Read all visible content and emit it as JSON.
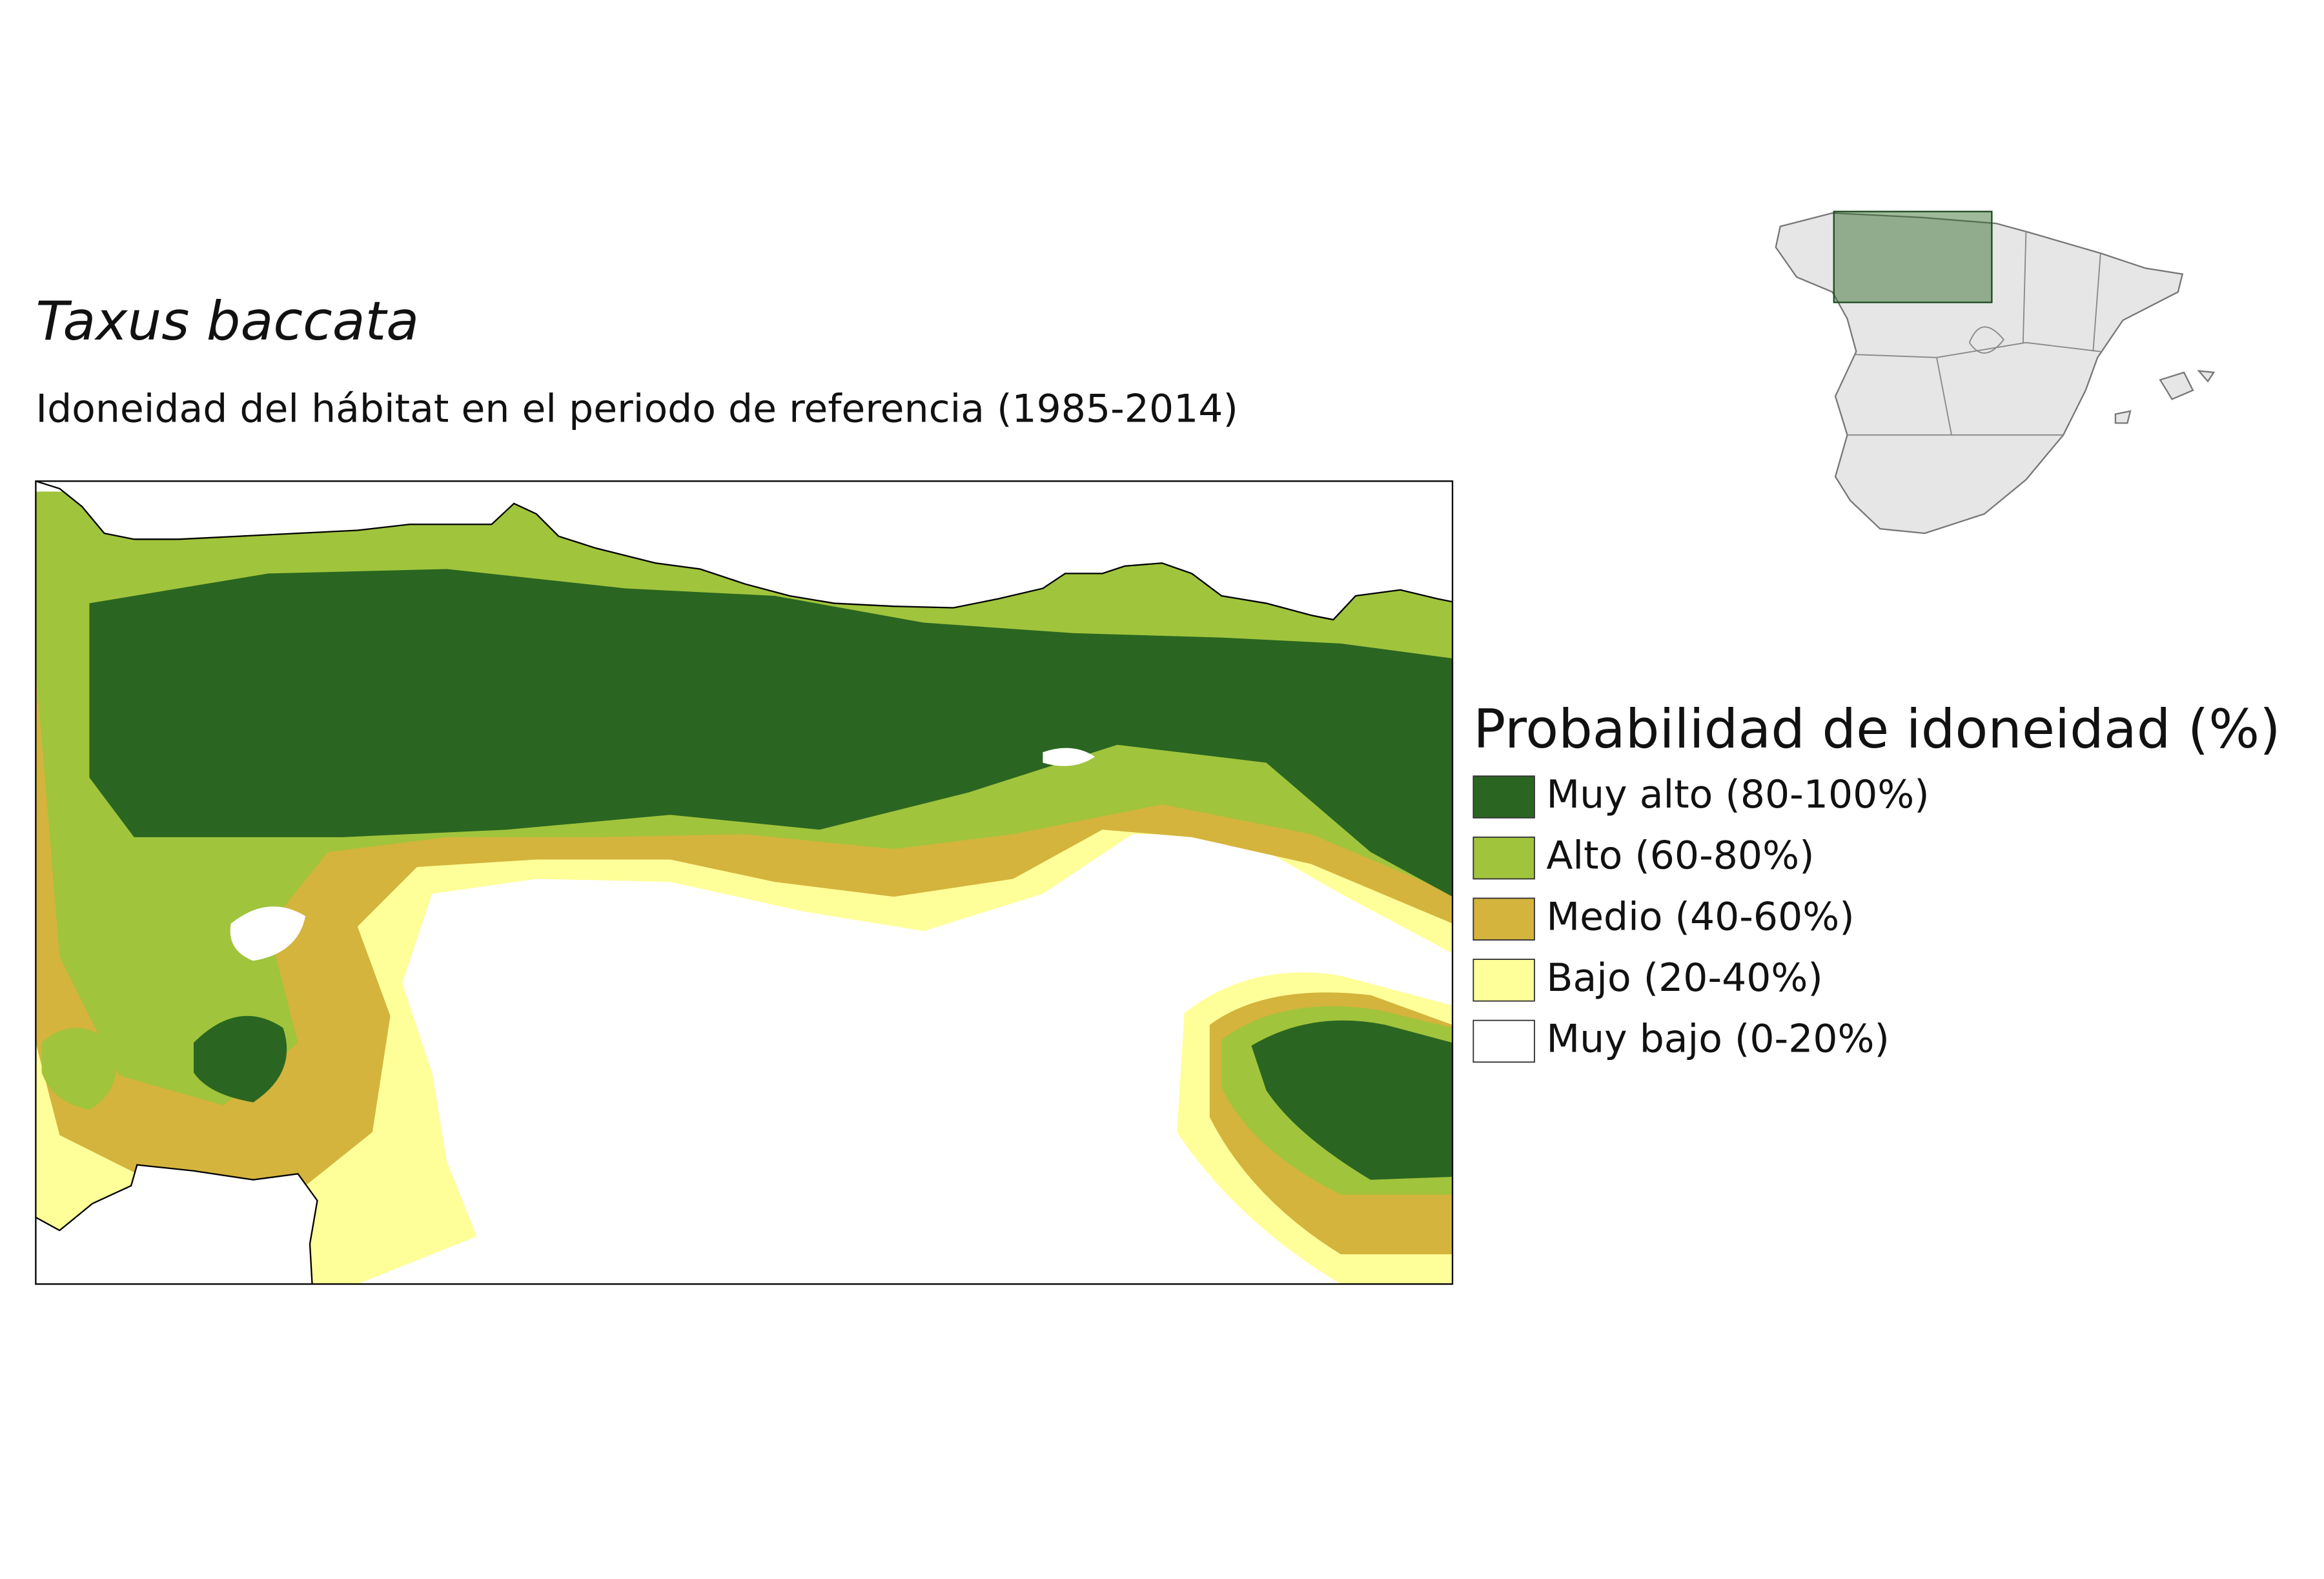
{
  "header": {
    "title": "Taxus baccata",
    "subtitle": "Idoneidad del hábitat en el periodo de referencia (1985-2014)"
  },
  "legend": {
    "title": "Probabilidad de idoneidad (%)",
    "items": [
      {
        "label": "Muy alto (80-100%)",
        "color": "#2a6621"
      },
      {
        "label": "Alto (60-80%)",
        "color": "#a0c43c"
      },
      {
        "label": "Medio (40-60%)",
        "color": "#d4b43c"
      },
      {
        "label": "Bajo (20-40%)",
        "color": "#ffff99"
      },
      {
        "label": "Muy bajo (0-20%)",
        "color": "#ffffff"
      }
    ]
  }
}
